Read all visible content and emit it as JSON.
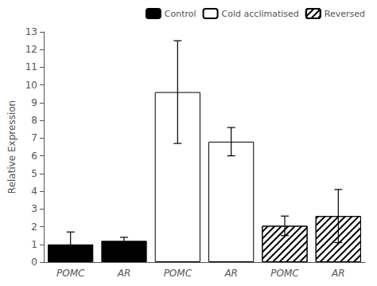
{
  "chart_data": {
    "type": "bar",
    "categories": [
      "POMC",
      "AR",
      "POMC",
      "AR",
      "POMC",
      "AR"
    ],
    "series": [
      {
        "name": "Control",
        "color": "black",
        "values": [
          1.0,
          1.2,
          null,
          null,
          null,
          null
        ],
        "errors": [
          0.7,
          0.2,
          null,
          null,
          null,
          null
        ]
      },
      {
        "name": "Cold acclimatised",
        "color": "white",
        "values": [
          null,
          null,
          9.6,
          6.8,
          null,
          null
        ],
        "errors": [
          null,
          null,
          2.9,
          0.8,
          null,
          null
        ]
      },
      {
        "name": "Reversed",
        "color": "white",
        "values": [
          null,
          null,
          null,
          null,
          2.05,
          2.6
        ],
        "errors": [
          null,
          null,
          null,
          null,
          0.55,
          1.5
        ]
      }
    ],
    "ylabel": "Relative Expression",
    "ylim": [
      0,
      13
    ],
    "yticks": [
      0,
      1,
      2,
      3,
      4,
      5,
      6,
      7,
      8,
      9,
      10,
      11,
      12,
      13
    ],
    "grid": false,
    "legend": "upper right"
  }
}
